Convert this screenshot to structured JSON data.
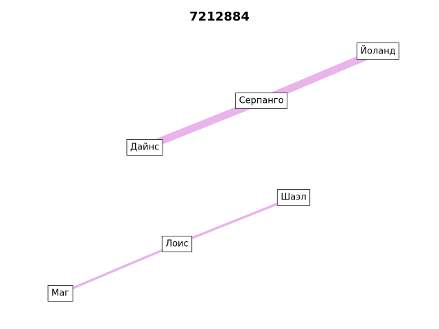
{
  "title": "7212884",
  "edge_color": "#e9b3ec",
  "nodes": [
    {
      "id": "yoland",
      "label": "Йоланд"
    },
    {
      "id": "serpango",
      "label": "Серпанго"
    },
    {
      "id": "dains",
      "label": "Дайнс"
    },
    {
      "id": "shael",
      "label": "Шаэл"
    },
    {
      "id": "lois",
      "label": "Лоис"
    },
    {
      "id": "mag",
      "label": "Маг"
    }
  ],
  "edges": [
    {
      "from": "dains",
      "to": "serpango",
      "weight": "heavy"
    },
    {
      "from": "serpango",
      "to": "yoland",
      "weight": "heavy"
    },
    {
      "from": "mag",
      "to": "lois",
      "weight": "light"
    },
    {
      "from": "lois",
      "to": "shael",
      "weight": "light"
    }
  ]
}
